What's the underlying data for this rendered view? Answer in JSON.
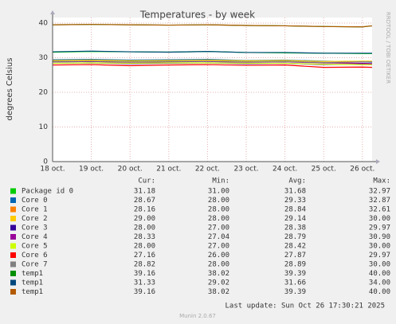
{
  "chart_data": {
    "type": "line",
    "title": "Temperatures - by week",
    "y_label": "degrees Celsius",
    "side_text": "RRDTOOL / TOBI OETIKER",
    "footer": "Last update: Sun Oct 26 17:30:21 2025",
    "version": "Munin 2.0.67",
    "x": [
      18,
      19,
      20,
      21,
      22,
      23,
      24,
      25,
      26,
      26.25
    ],
    "xlim": [
      18,
      26.25
    ],
    "xticks": [
      {
        "value": 18,
        "label": "18 oct."
      },
      {
        "value": 19,
        "label": "19 oct."
      },
      {
        "value": 20,
        "label": "20 oct."
      },
      {
        "value": 21,
        "label": "21 oct."
      },
      {
        "value": 22,
        "label": "22 oct."
      },
      {
        "value": 23,
        "label": "23 oct."
      },
      {
        "value": 24,
        "label": "24 oct."
      },
      {
        "value": 25,
        "label": "25 oct."
      },
      {
        "value": 26,
        "label": "26 oct."
      }
    ],
    "ylim": [
      0,
      41.6
    ],
    "yticks": [
      0,
      10,
      20,
      30,
      40
    ],
    "grid": true,
    "stat_headers": [
      "Cur:",
      "Min:",
      "Avg:",
      "Max:"
    ],
    "series": [
      {
        "name": "Package id 0",
        "color": "#00cc00",
        "values": [
          31.6,
          31.8,
          31.7,
          31.6,
          31.8,
          31.5,
          31.4,
          31.3,
          31.2,
          31.2
        ],
        "stats": [
          "31.18",
          "31.00",
          "31.68",
          "32.97"
        ]
      },
      {
        "name": "Core 0",
        "color": "#0066b3",
        "values": [
          29.4,
          29.5,
          29.3,
          29.4,
          29.5,
          29.2,
          29.3,
          29.0,
          28.8,
          28.7
        ],
        "stats": [
          "28.67",
          "28.00",
          "29.33",
          "32.87"
        ]
      },
      {
        "name": "Core 1",
        "color": "#ff8000",
        "values": [
          28.9,
          29.0,
          28.8,
          28.9,
          29.0,
          28.8,
          28.9,
          28.6,
          28.3,
          28.2
        ],
        "stats": [
          "28.16",
          "28.00",
          "28.84",
          "32.61"
        ]
      },
      {
        "name": "Core 2",
        "color": "#ffcc00",
        "values": [
          29.2,
          29.3,
          29.1,
          29.2,
          29.3,
          29.1,
          29.2,
          28.9,
          29.0,
          29.0
        ],
        "stats": [
          "29.00",
          "28.00",
          "29.14",
          "30.00"
        ]
      },
      {
        "name": "Core 3",
        "color": "#330099",
        "values": [
          28.4,
          28.5,
          28.3,
          28.4,
          28.5,
          28.3,
          28.4,
          28.0,
          28.1,
          28.0
        ],
        "stats": [
          "28.00",
          "27.00",
          "28.38",
          "29.97"
        ]
      },
      {
        "name": "Core 4",
        "color": "#990099",
        "values": [
          28.8,
          28.9,
          28.7,
          28.8,
          28.9,
          28.7,
          28.8,
          28.5,
          28.4,
          28.3
        ],
        "stats": [
          "28.33",
          "27.04",
          "28.79",
          "30.90"
        ]
      },
      {
        "name": "Core 5",
        "color": "#ccff00",
        "values": [
          28.4,
          28.5,
          28.4,
          28.5,
          28.5,
          28.4,
          28.4,
          28.1,
          28.0,
          28.0
        ],
        "stats": [
          "28.00",
          "27.00",
          "28.42",
          "30.00"
        ]
      },
      {
        "name": "Core 6",
        "color": "#ff0000",
        "values": [
          27.9,
          28.0,
          27.7,
          27.9,
          28.0,
          27.8,
          27.9,
          27.2,
          27.3,
          27.2
        ],
        "stats": [
          "27.16",
          "26.00",
          "27.87",
          "29.97"
        ]
      },
      {
        "name": "Core 7",
        "color": "#808080",
        "values": [
          28.9,
          29.0,
          28.8,
          28.9,
          29.0,
          28.8,
          28.9,
          28.6,
          28.8,
          28.8
        ],
        "stats": [
          "28.82",
          "28.00",
          "28.89",
          "30.00"
        ]
      },
      {
        "name": "temp1",
        "color": "#008f00",
        "values": [
          39.5,
          39.6,
          39.5,
          39.4,
          39.5,
          39.3,
          39.2,
          39.0,
          38.9,
          39.2
        ],
        "stats": [
          "39.16",
          "38.02",
          "39.39",
          "40.00"
        ]
      },
      {
        "name": "temp1",
        "color": "#00487d",
        "values": [
          31.7,
          31.9,
          31.7,
          31.6,
          31.8,
          31.5,
          31.5,
          31.3,
          31.3,
          31.3
        ],
        "stats": [
          "31.33",
          "29.02",
          "31.66",
          "34.00"
        ]
      },
      {
        "name": "temp1",
        "color": "#b35a00",
        "values": [
          39.5,
          39.6,
          39.5,
          39.4,
          39.5,
          39.3,
          39.2,
          39.0,
          38.9,
          39.2
        ],
        "stats": [
          "39.16",
          "38.02",
          "39.39",
          "40.00"
        ]
      }
    ]
  }
}
